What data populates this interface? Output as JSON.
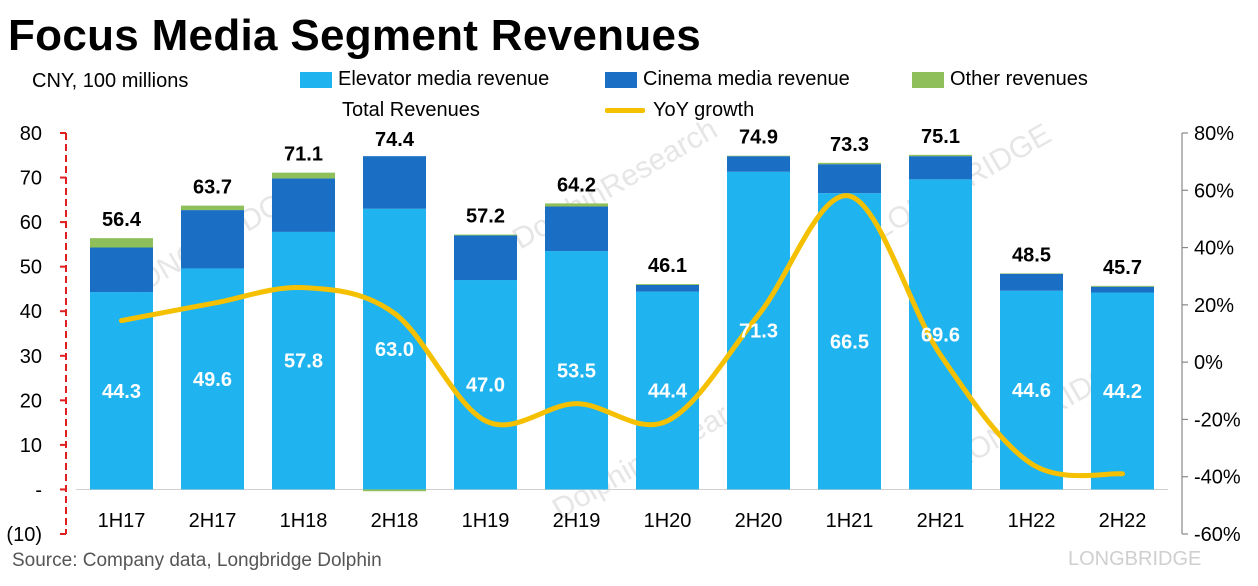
{
  "header": {
    "title": "Focus Media Segment Revenues",
    "unit": "CNY, 100 millions",
    "source": "Source: Company data, Longbridge Dolphin"
  },
  "legend": {
    "elevator": "Elevator media revenue",
    "cinema": "Cinema media revenue",
    "other": "Other revenues",
    "total": "Total Revenues",
    "yoy": "YoY growth"
  },
  "watermark": [
    "LONGBRIDGE",
    "DolphinResearch"
  ],
  "colors": {
    "elevator": "#1fb4f0",
    "cinema": "#1a6fc4",
    "other": "#8fbf5a",
    "yoy": "#f5c000",
    "axis_red": "#e02020"
  },
  "chart_data": {
    "type": "bar",
    "stacked": true,
    "categories": [
      "1H17",
      "2H17",
      "1H18",
      "2H18",
      "1H19",
      "2H19",
      "1H20",
      "2H20",
      "1H21",
      "2H21",
      "1H22",
      "2H22"
    ],
    "series": [
      {
        "name": "Elevator media revenue",
        "values": [
          44.3,
          49.6,
          57.8,
          63.0,
          47.0,
          53.5,
          44.4,
          71.3,
          66.5,
          69.6,
          44.6,
          44.2
        ]
      },
      {
        "name": "Cinema media revenue",
        "values": [
          10.0,
          13.1,
          12.0,
          11.8,
          10.0,
          10.0,
          1.5,
          3.5,
          6.5,
          5.2,
          3.8,
          1.3
        ]
      },
      {
        "name": "Other revenues",
        "values": [
          2.1,
          1.0,
          1.3,
          -0.4,
          0.2,
          0.7,
          0.2,
          0.1,
          0.3,
          0.3,
          0.1,
          0.2
        ]
      }
    ],
    "totals": {
      "name": "Total Revenues",
      "values": [
        56.4,
        63.7,
        71.1,
        74.4,
        57.2,
        64.2,
        46.1,
        74.9,
        73.3,
        75.1,
        48.5,
        45.7
      ],
      "labels": [
        "56.4",
        "63.7",
        "71.1",
        "74.4",
        "57.2",
        "64.2",
        "46.1",
        "74.9",
        "73.3",
        "75.1",
        "48.5",
        "45.7"
      ]
    },
    "elevator_labels": [
      "44.3",
      "49.6",
      "57.8",
      "63.0",
      "47.0",
      "53.5",
      "44.4",
      "71.3",
      "66.5",
      "69.6",
      "44.6",
      "44.2"
    ],
    "line": {
      "name": "YoY growth",
      "axis": "right",
      "values": [
        14.5,
        20.5,
        26.0,
        17.0,
        -20.5,
        -14.5,
        -20.5,
        16.5,
        58.0,
        2.5,
        -35.5,
        -39.0
      ]
    },
    "y_left": {
      "min": -10,
      "max": 80,
      "step": 10,
      "ticks": [
        "(10)",
        "-",
        "10",
        "20",
        "30",
        "40",
        "50",
        "60",
        "70",
        "80"
      ]
    },
    "y_right": {
      "min": -60,
      "max": 80,
      "step": 20,
      "ticks": [
        "-60%",
        "-40%",
        "-20%",
        "0%",
        "20%",
        "40%",
        "60%",
        "80%"
      ]
    }
  }
}
